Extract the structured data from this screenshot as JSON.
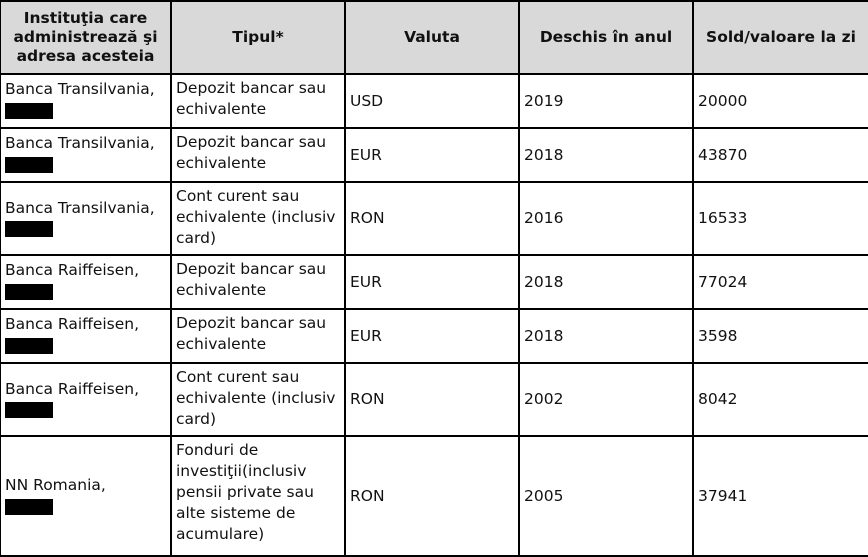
{
  "headers": [
    "Instituţia care administrează şi adresa acesteia",
    "Tipul*",
    "Valuta",
    "Deschis în anul",
    "Sold/valoare la zi"
  ],
  "rows": [
    {
      "institution": "Banca Transilvania,",
      "type": "Depozit bancar sau echivalente",
      "currency": "USD",
      "year": "2019",
      "value": "20000"
    },
    {
      "institution": "Banca Transilvania,",
      "type": "Depozit bancar sau echivalente",
      "currency": "EUR",
      "year": "2018",
      "value": "43870"
    },
    {
      "institution": "Banca Transilvania,",
      "type": "Cont curent sau echivalente (inclusiv card)",
      "currency": "RON",
      "year": "2016",
      "value": "16533"
    },
    {
      "institution": "Banca Raiffeisen,",
      "type": "Depozit bancar sau echivalente",
      "currency": "EUR",
      "year": "2018",
      "value": "77024"
    },
    {
      "institution": "Banca Raiffeisen,",
      "type": "Depozit bancar sau echivalente",
      "currency": "EUR",
      "year": "2018",
      "value": "3598"
    },
    {
      "institution": "Banca Raiffeisen,",
      "type": "Cont curent sau echivalente (inclusiv card)",
      "currency": "RON",
      "year": "2002",
      "value": "8042"
    },
    {
      "institution": "NN Romania,",
      "type": "Fonduri de investiţii(inclusiv pensii private sau alte sisteme de acumulare)",
      "currency": "RON",
      "year": "2005",
      "value": "37941"
    }
  ]
}
